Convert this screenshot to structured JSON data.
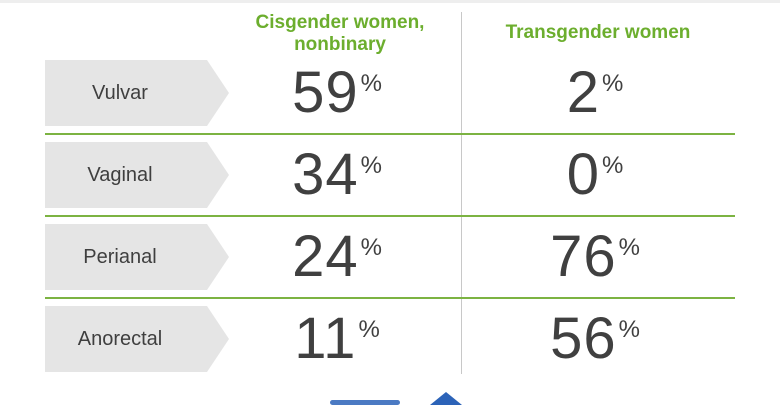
{
  "headers": {
    "col1": "Cisgender women, nonbinary",
    "col2": "Transgender women"
  },
  "percent_sign": "%",
  "rows": [
    {
      "label": "Vulvar",
      "cis": "59",
      "trans": "2"
    },
    {
      "label": "Vaginal",
      "cis": "34",
      "trans": "0"
    },
    {
      "label": "Perianal",
      "cis": "24",
      "trans": "76"
    },
    {
      "label": "Anorectal",
      "cis": "11",
      "trans": "56"
    }
  ],
  "colors": {
    "accent_green": "#6cae2e",
    "label_bg": "#e5e5e5",
    "text": "#404040",
    "logo_blue": "#2c63b8"
  }
}
